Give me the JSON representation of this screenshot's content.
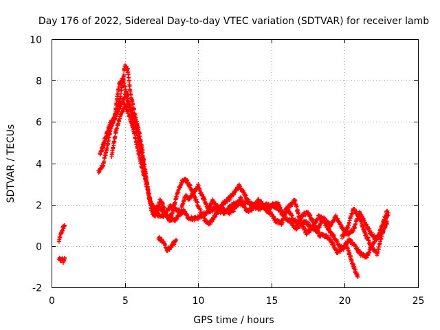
{
  "chart_data": {
    "type": "scatter",
    "title": "Day 176 of 2022, Sidereal Day-to-day VTEC variation (SDTVAR) for receiver lamb",
    "xlabel": "GPS time / hours",
    "ylabel": "SDTVAR / TECUs",
    "xlim": [
      0,
      25
    ],
    "ylim": [
      -2,
      10
    ],
    "xticks": [
      0,
      5,
      10,
      15,
      20,
      25
    ],
    "yticks": [
      -2,
      0,
      2,
      4,
      6,
      8,
      10
    ],
    "grid": true,
    "marker": "+",
    "series": [
      {
        "name": "SDTVAR",
        "color": "#ff0000",
        "tracks": [
          [
            [
              0.5,
              0.2
            ],
            [
              0.6,
              0.5
            ],
            [
              0.7,
              0.7
            ],
            [
              0.8,
              0.9
            ],
            [
              0.9,
              1.0
            ]
          ],
          [
            [
              0.5,
              -0.6
            ],
            [
              0.6,
              -0.7
            ],
            [
              0.7,
              -0.6
            ],
            [
              0.8,
              -0.8
            ],
            [
              0.9,
              -0.6
            ]
          ],
          [
            [
              3.2,
              3.6
            ],
            [
              3.5,
              3.9
            ],
            [
              3.8,
              4.8
            ],
            [
              4.1,
              5.9
            ],
            [
              4.4,
              6.4
            ],
            [
              4.7,
              7.2
            ],
            [
              5.0,
              8.7
            ],
            [
              5.2,
              8.5
            ],
            [
              5.4,
              7.3
            ],
            [
              5.7,
              6.3
            ],
            [
              6.0,
              5.4
            ],
            [
              6.2,
              4.6
            ],
            [
              6.4,
              3.6
            ],
            [
              6.6,
              2.6
            ],
            [
              6.8,
              1.8
            ],
            [
              7.0,
              1.4
            ],
            [
              7.2,
              1.6
            ],
            [
              7.4,
              2.2
            ],
            [
              7.6,
              2.0
            ],
            [
              7.9,
              1.4
            ],
            [
              8.2,
              1.5
            ],
            [
              8.6,
              2.6
            ],
            [
              8.9,
              3.1
            ],
            [
              9.2,
              3.2
            ],
            [
              9.5,
              2.8
            ],
            [
              9.8,
              2.3
            ],
            [
              10.1,
              1.8
            ],
            [
              10.5,
              1.2
            ],
            [
              10.8,
              1.1
            ],
            [
              11.2,
              1.5
            ],
            [
              11.6,
              2.0
            ],
            [
              12.0,
              2.2
            ],
            [
              12.4,
              2.5
            ],
            [
              12.8,
              2.9
            ],
            [
              13.1,
              2.6
            ],
            [
              13.5,
              2.0
            ],
            [
              13.9,
              2.0
            ],
            [
              14.3,
              2.1
            ],
            [
              14.7,
              1.7
            ],
            [
              15.1,
              2.0
            ],
            [
              15.5,
              1.8
            ],
            [
              15.9,
              1.4
            ],
            [
              16.3,
              1.2
            ],
            [
              16.7,
              0.8
            ],
            [
              17.1,
              1.5
            ],
            [
              17.5,
              1.6
            ],
            [
              17.9,
              1.1
            ],
            [
              18.3,
              0.5
            ],
            [
              18.7,
              0.5
            ],
            [
              19.1,
              0.2
            ],
            [
              19.5,
              -0.3
            ],
            [
              19.9,
              -0.1
            ],
            [
              20.3,
              0.3
            ],
            [
              20.7,
              0.0
            ],
            [
              21.1,
              -0.4
            ],
            [
              21.5,
              -0.5
            ],
            [
              21.9,
              0.1
            ],
            [
              22.3,
              0.5
            ],
            [
              22.7,
              1.3
            ],
            [
              22.9,
              1.7
            ]
          ],
          [
            [
              3.3,
              4.4
            ],
            [
              3.6,
              5.0
            ],
            [
              3.9,
              5.6
            ],
            [
              4.2,
              6.0
            ],
            [
              4.5,
              6.5
            ],
            [
              4.8,
              6.9
            ],
            [
              5.1,
              7.4
            ],
            [
              5.3,
              6.8
            ],
            [
              5.6,
              6.0
            ],
            [
              5.9,
              5.3
            ],
            [
              6.2,
              4.2
            ],
            [
              6.5,
              3.0
            ],
            [
              6.8,
              2.0
            ],
            [
              7.1,
              1.6
            ],
            [
              7.5,
              1.4
            ],
            [
              7.8,
              1.6
            ],
            [
              8.1,
              1.9
            ],
            [
              8.5,
              1.8
            ],
            [
              8.8,
              1.6
            ],
            [
              9.1,
              2.4
            ],
            [
              9.4,
              2.3
            ],
            [
              9.7,
              2.6
            ],
            [
              10.0,
              2.9
            ],
            [
              10.3,
              2.4
            ],
            [
              10.7,
              1.8
            ],
            [
              11.0,
              2.2
            ],
            [
              11.4,
              1.7
            ],
            [
              11.8,
              1.6
            ],
            [
              12.2,
              1.9
            ],
            [
              12.6,
              2.1
            ],
            [
              13.0,
              2.0
            ],
            [
              13.4,
              2.2
            ],
            [
              13.8,
              1.9
            ],
            [
              14.2,
              1.8
            ],
            [
              14.6,
              2.0
            ],
            [
              15.0,
              1.9
            ],
            [
              15.4,
              2.1
            ],
            [
              15.8,
              1.6
            ],
            [
              16.2,
              1.9
            ],
            [
              16.6,
              2.2
            ],
            [
              17.0,
              1.1
            ],
            [
              17.4,
              0.6
            ],
            [
              17.8,
              0.9
            ],
            [
              18.2,
              1.4
            ],
            [
              18.6,
              1.3
            ],
            [
              19.0,
              1.0
            ],
            [
              19.4,
              1.4
            ],
            [
              19.8,
              0.9
            ],
            [
              20.2,
              0.6
            ],
            [
              20.6,
              0.8
            ],
            [
              21.0,
              1.6
            ],
            [
              21.4,
              1.1
            ],
            [
              21.8,
              0.6
            ],
            [
              22.2,
              0.3
            ],
            [
              22.6,
              0.7
            ],
            [
              22.9,
              1.2
            ]
          ],
          [
            [
              3.4,
              4.6
            ],
            [
              3.7,
              5.3
            ],
            [
              4.0,
              5.9
            ],
            [
              4.3,
              6.2
            ],
            [
              4.6,
              7.8
            ],
            [
              4.9,
              8.1
            ],
            [
              5.2,
              7.0
            ],
            [
              5.5,
              6.5
            ],
            [
              5.8,
              5.8
            ],
            [
              6.1,
              4.8
            ],
            [
              6.4,
              3.2
            ],
            [
              6.7,
              2.2
            ],
            [
              7.0,
              1.8
            ],
            [
              7.3,
              1.9
            ],
            [
              7.7,
              1.6
            ],
            [
              8.0,
              1.3
            ],
            [
              8.4,
              1.2
            ],
            [
              8.7,
              1.5
            ],
            [
              9.0,
              1.7
            ],
            [
              9.3,
              1.4
            ],
            [
              9.7,
              1.3
            ],
            [
              10.1,
              1.4
            ],
            [
              10.5,
              1.6
            ],
            [
              10.9,
              1.7
            ],
            [
              11.3,
              1.9
            ],
            [
              11.7,
              1.8
            ],
            [
              12.1,
              1.6
            ],
            [
              12.5,
              1.8
            ],
            [
              12.9,
              2.3
            ],
            [
              13.3,
              1.7
            ],
            [
              13.7,
              1.8
            ],
            [
              14.1,
              2.2
            ],
            [
              14.5,
              1.9
            ],
            [
              14.9,
              1.6
            ],
            [
              15.3,
              1.2
            ],
            [
              15.7,
              1.1
            ],
            [
              16.1,
              1.8
            ],
            [
              16.5,
              1.3
            ],
            [
              16.9,
              1.0
            ],
            [
              17.3,
              1.2
            ],
            [
              17.7,
              0.9
            ],
            [
              18.1,
              0.7
            ],
            [
              18.5,
              1.3
            ],
            [
              18.9,
              0.8
            ],
            [
              19.3,
              0.4
            ],
            [
              19.7,
              -0.1
            ],
            [
              20.1,
              0.1
            ],
            [
              20.5,
              -0.8
            ],
            [
              20.9,
              -1.5
            ]
          ],
          [
            [
              4.1,
              4.4
            ],
            [
              4.4,
              5.6
            ],
            [
              4.7,
              6.3
            ],
            [
              5.0,
              6.8
            ],
            [
              5.3,
              6.3
            ],
            [
              5.6,
              5.6
            ],
            [
              5.9,
              4.6
            ],
            [
              6.1,
              4.0
            ],
            [
              6.3,
              3.4
            ]
          ],
          [
            [
              7.3,
              0.4
            ],
            [
              7.6,
              0.2
            ],
            [
              7.9,
              -0.2
            ],
            [
              8.2,
              0.0
            ],
            [
              8.5,
              0.3
            ]
          ],
          [
            [
              19.8,
              0.4
            ],
            [
              20.2,
              0.9
            ],
            [
              20.6,
              1.8
            ],
            [
              21.0,
              1.4
            ],
            [
              21.4,
              0.6
            ],
            [
              21.8,
              0.0
            ],
            [
              22.2,
              -0.4
            ],
            [
              22.5,
              0.4
            ],
            [
              22.8,
              1.4
            ],
            [
              23.0,
              1.6
            ]
          ]
        ]
      }
    ]
  }
}
